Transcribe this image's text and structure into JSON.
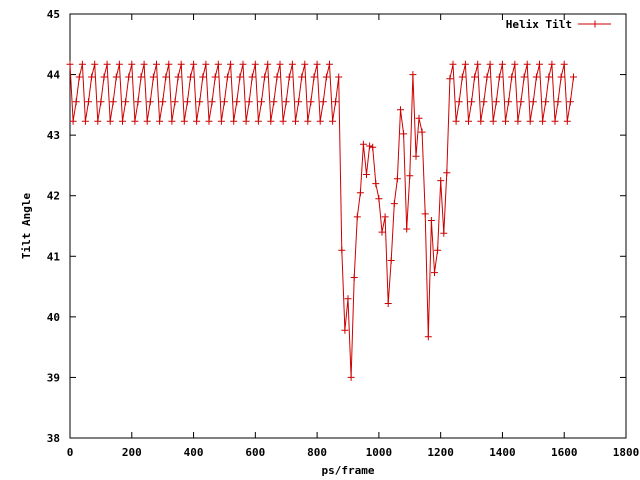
{
  "chart_data": {
    "type": "line",
    "title": "",
    "xlabel": "ps/frame",
    "ylabel": "Tilt Angle",
    "xlim": [
      0,
      1800
    ],
    "ylim": [
      38,
      45
    ],
    "xticks": [
      "0",
      "200",
      "400",
      "600",
      "800",
      "1000",
      "1200",
      "1400",
      "1600",
      "1800"
    ],
    "yticks": [
      "38",
      "39",
      "40",
      "41",
      "42",
      "43",
      "44",
      "45"
    ],
    "legend_position": "top-right",
    "grid": false,
    "series": [
      {
        "name": "Helix Tilt",
        "color": "#cc0000",
        "marker": "plus",
        "x": [
          0,
          10,
          20,
          30,
          40,
          50,
          60,
          70,
          80,
          90,
          100,
          110,
          120,
          130,
          140,
          150,
          160,
          170,
          180,
          190,
          200,
          210,
          220,
          230,
          240,
          250,
          260,
          270,
          280,
          290,
          300,
          310,
          320,
          330,
          340,
          350,
          360,
          370,
          380,
          390,
          400,
          410,
          420,
          430,
          440,
          450,
          460,
          470,
          480,
          490,
          500,
          510,
          520,
          530,
          540,
          550,
          560,
          570,
          580,
          590,
          600,
          610,
          620,
          630,
          640,
          650,
          660,
          670,
          680,
          690,
          700,
          710,
          720,
          730,
          740,
          750,
          760,
          770,
          780,
          790,
          800,
          810,
          820,
          830,
          840,
          850,
          860,
          870,
          880,
          890,
          900,
          910,
          920,
          930,
          940,
          950,
          960,
          970,
          980,
          990,
          1000,
          1010,
          1020,
          1030,
          1040,
          1050,
          1060,
          1070,
          1080,
          1090,
          1100,
          1110,
          1120,
          1130,
          1140,
          1150,
          1160,
          1170,
          1180,
          1190,
          1200,
          1210,
          1220,
          1230,
          1240,
          1250,
          1260,
          1270,
          1280,
          1290,
          1300,
          1310,
          1320,
          1330,
          1340,
          1350,
          1360,
          1370,
          1380,
          1390,
          1400,
          1410,
          1420,
          1430,
          1440,
          1450,
          1460,
          1470,
          1480,
          1490,
          1500,
          1510,
          1520,
          1530,
          1540,
          1550,
          1560,
          1570,
          1580,
          1590,
          1600,
          1610,
          1620,
          1630
        ],
        "y": [
          44.17,
          43.23,
          43.55,
          43.96,
          44.17,
          43.23,
          43.55,
          43.96,
          44.17,
          43.23,
          43.55,
          43.96,
          44.17,
          43.23,
          43.55,
          43.96,
          44.17,
          43.23,
          43.55,
          43.96,
          44.17,
          43.23,
          43.55,
          43.96,
          44.17,
          43.23,
          43.55,
          43.96,
          44.17,
          43.23,
          43.55,
          43.96,
          44.17,
          43.23,
          43.55,
          43.96,
          44.17,
          43.23,
          43.55,
          43.96,
          44.17,
          43.23,
          43.55,
          43.96,
          44.17,
          43.23,
          43.55,
          43.96,
          44.17,
          43.23,
          43.55,
          43.96,
          44.17,
          43.23,
          43.55,
          43.96,
          44.17,
          43.23,
          43.55,
          43.96,
          44.17,
          43.23,
          43.55,
          43.96,
          44.17,
          43.23,
          43.55,
          43.96,
          44.17,
          43.23,
          43.55,
          43.96,
          44.17,
          43.23,
          43.55,
          43.96,
          44.17,
          43.23,
          43.55,
          43.96,
          44.17,
          43.23,
          43.55,
          43.96,
          44.17,
          43.23,
          43.55,
          43.96,
          41.1,
          39.78,
          40.3,
          39.0,
          40.65,
          41.65,
          42.05,
          42.85,
          42.35,
          42.82,
          42.8,
          42.2,
          41.95,
          41.4,
          41.65,
          40.22,
          40.93,
          41.87,
          42.28,
          43.42,
          43.02,
          41.45,
          42.33,
          44.0,
          42.65,
          43.28,
          43.05,
          41.7,
          39.67,
          41.59,
          40.73,
          41.1,
          42.25,
          41.38,
          42.38,
          43.93,
          44.17,
          43.23,
          43.55,
          43.96,
          44.17,
          43.23,
          43.55,
          43.96,
          44.17,
          43.23,
          43.55,
          43.96,
          44.17,
          43.23,
          43.55,
          43.96,
          44.17,
          43.23,
          43.55,
          43.96,
          44.17,
          43.23,
          43.55,
          43.96,
          44.17,
          43.23,
          43.55,
          43.96,
          44.17,
          43.23,
          43.55,
          43.96,
          44.17,
          43.23,
          43.55,
          43.96,
          44.17,
          43.23,
          43.55,
          43.96
        ]
      }
    ]
  }
}
